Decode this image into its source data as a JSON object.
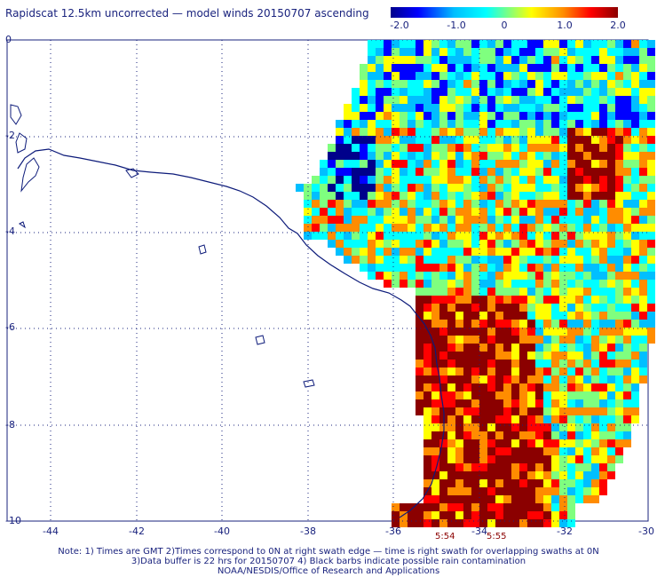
{
  "title": "Rapidscat 12.5km uncorrected — model winds 20150707 ascending",
  "colorbar": {
    "labels": [
      "-2.0",
      "-1.0",
      "0",
      "1.0",
      "2.0"
    ],
    "colors": [
      "#00008b",
      "#0000ff",
      "#00bfff",
      "#00ffff",
      "#7fff7f",
      "#ffff00",
      "#ff8c00",
      "#ff0000",
      "#8b0000"
    ]
  },
  "axes": {
    "x_ticks": [
      "-44",
      "-42",
      "-40",
      "-38",
      "-36",
      "-34",
      "-32",
      "-30"
    ],
    "y_ticks": [
      "0",
      "-2",
      "-4",
      "-6",
      "-8",
      "-10"
    ]
  },
  "times": [
    "5:54",
    "5:55"
  ],
  "notes": {
    "line1": "Note: 1) Times are GMT 2)Times correspond to 0N at right swath edge — time is right swath for overlapping swaths at 0N",
    "line2": "3)Data buffer is 22 hrs for 20150707 4) Black barbs indicate possible rain contamination",
    "line3": "NOAA/NESDIS/Office of Research and Applications"
  },
  "style": {
    "grid_color": "#1a237e",
    "coast_color": "#0d1b7a"
  }
}
